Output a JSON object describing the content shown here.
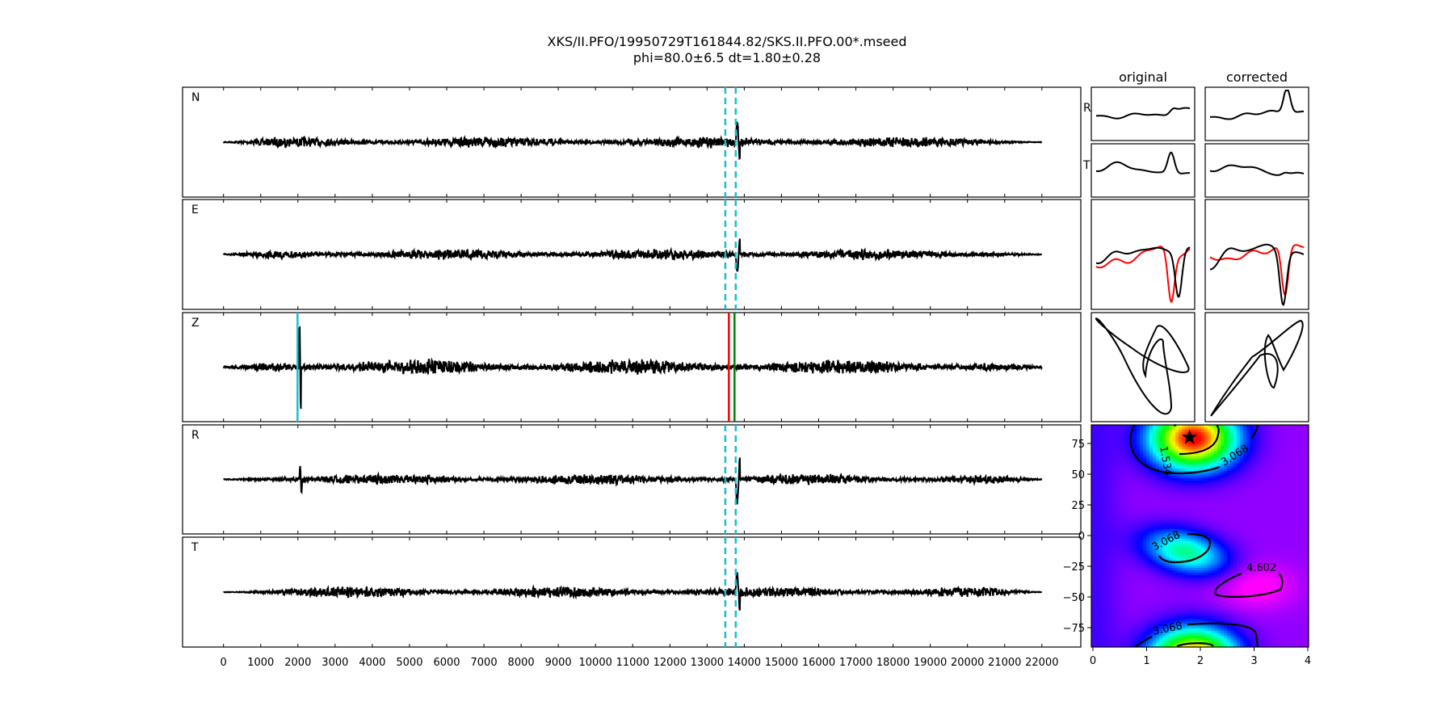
{
  "chart_data": {
    "type": "line",
    "title": "XKS/II.PFO/19950729T161844.82/SKS.II.PFO.00*.mseed",
    "subtitle": "phi=80.0±6.5 dt=1.80±0.28",
    "traces": {
      "channels": [
        "N",
        "E",
        "Z",
        "R",
        "T"
      ],
      "xlim": [
        -1000,
        23000
      ],
      "data_range": [
        0,
        22000
      ],
      "xticks": [
        0,
        1000,
        2000,
        3000,
        4000,
        5000,
        6000,
        7000,
        8000,
        9000,
        10000,
        11000,
        12000,
        13000,
        14000,
        15000,
        16000,
        17000,
        18000,
        19000,
        20000,
        21000,
        22000
      ],
      "xtick_labels": [
        "0",
        "1000",
        "2000",
        "3000",
        "4000",
        "5000",
        "6000",
        "7000",
        "8000",
        "9000",
        "10000",
        "11000",
        "12000",
        "13000",
        "14000",
        "15000",
        "16000",
        "17000",
        "18000",
        "19000",
        "20000",
        "21000",
        "22000"
      ],
      "window_start": 13490,
      "window_end": 13770,
      "z_markers": [
        {
          "x": 1990,
          "color": "#17becf"
        },
        {
          "x": 13585,
          "color": "#ff0000"
        },
        {
          "x": 13737,
          "color": "#008000"
        }
      ],
      "window_color": "#17becf"
    },
    "comparison": {
      "col_titles": [
        "original",
        "corrected"
      ],
      "row_labels": [
        "R",
        "T"
      ],
      "overlay_colors": [
        "#000000",
        "#ff0000"
      ]
    },
    "error_surface": {
      "type": "heatmap",
      "xlim": [
        0,
        4
      ],
      "ylim": [
        -90,
        90
      ],
      "xticks": [
        "0",
        "1",
        "2",
        "3",
        "4"
      ],
      "yticks": [
        "75",
        "50",
        "25",
        "0",
        "−25",
        "−50",
        "−75"
      ],
      "ytick_values": [
        75,
        50,
        25,
        0,
        -25,
        -50,
        -75
      ],
      "xtick_values": [
        0,
        1,
        2,
        3,
        4
      ],
      "contour_labels": [
        "1.534",
        "3.068",
        "3.068",
        "4.602",
        "3.068"
      ],
      "best": {
        "dt": 1.8,
        "phi": 80
      },
      "colormap": "reversed rainbow (red low, magenta high)"
    }
  }
}
